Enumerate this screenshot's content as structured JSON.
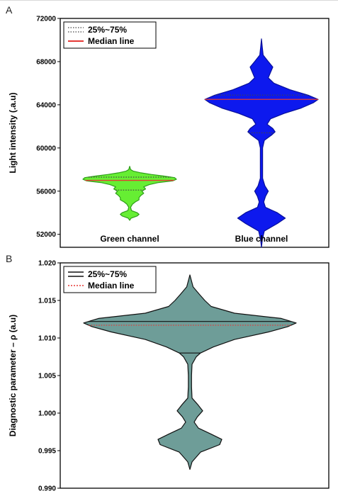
{
  "chart_data": [
    {
      "panel_label": "A",
      "type": "violin",
      "categories": [
        "Green channel",
        "Blue channel"
      ],
      "ylabel": "Light intensity (.a.u)",
      "ylim": [
        50800,
        72000
      ],
      "yticks": [
        52000,
        56000,
        60000,
        64000,
        68000,
        72000
      ],
      "grid": false,
      "legend_position": "top-left",
      "legend": [
        {
          "label": "25%~75%",
          "style": "dotted",
          "color": "#444444"
        },
        {
          "label": "Median line",
          "style": "solid",
          "color": "#e53935"
        }
      ],
      "series": [
        {
          "name": "Green channel",
          "fill": "#66ee33",
          "stroke": "#2f9e1a",
          "min": 53300,
          "max": 58300,
          "median": 57000,
          "q1": 56100,
          "q3": 57300,
          "profile": [
            [
              53300,
              0.0
            ],
            [
              53500,
              0.03
            ],
            [
              53700,
              0.16
            ],
            [
              53850,
              0.2
            ],
            [
              54000,
              0.16
            ],
            [
              54200,
              0.04
            ],
            [
              54500,
              0.02
            ],
            [
              54800,
              0.06
            ],
            [
              55000,
              0.12
            ],
            [
              55200,
              0.2
            ],
            [
              55400,
              0.2
            ],
            [
              55600,
              0.24
            ],
            [
              55800,
              0.3
            ],
            [
              56000,
              0.26
            ],
            [
              56200,
              0.34
            ],
            [
              56400,
              0.3
            ],
            [
              56600,
              0.42
            ],
            [
              56800,
              0.62
            ],
            [
              56950,
              0.92
            ],
            [
              57100,
              1.0
            ],
            [
              57250,
              0.96
            ],
            [
              57400,
              0.72
            ],
            [
              57550,
              0.46
            ],
            [
              57700,
              0.24
            ],
            [
              57850,
              0.08
            ],
            [
              58000,
              0.02
            ],
            [
              58300,
              0.0
            ]
          ]
        },
        {
          "name": "Blue channel",
          "fill": "#0d19ee",
          "stroke": "#08109a",
          "min": 50800,
          "max": 70100,
          "median": 64500,
          "q1": 61400,
          "q3": 64900,
          "profile": [
            [
              50800,
              0.0
            ],
            [
              51500,
              0.015
            ],
            [
              52300,
              0.05
            ],
            [
              53000,
              0.28
            ],
            [
              53500,
              0.42
            ],
            [
              54000,
              0.28
            ],
            [
              54500,
              0.07
            ],
            [
              55000,
              0.04
            ],
            [
              55500,
              0.07
            ],
            [
              56000,
              0.12
            ],
            [
              56500,
              0.06
            ],
            [
              57200,
              0.02
            ],
            [
              58500,
              0.02
            ],
            [
              60000,
              0.02
            ],
            [
              60700,
              0.05
            ],
            [
              61200,
              0.18
            ],
            [
              61500,
              0.24
            ],
            [
              61800,
              0.2
            ],
            [
              62200,
              0.1
            ],
            [
              62700,
              0.16
            ],
            [
              63200,
              0.4
            ],
            [
              63700,
              0.7
            ],
            [
              64200,
              0.92
            ],
            [
              64500,
              1.0
            ],
            [
              64900,
              0.82
            ],
            [
              65400,
              0.5
            ],
            [
              66000,
              0.22
            ],
            [
              66500,
              0.12
            ],
            [
              67000,
              0.16
            ],
            [
              67500,
              0.2
            ],
            [
              68000,
              0.12
            ],
            [
              68600,
              0.03
            ],
            [
              69300,
              0.015
            ],
            [
              70100,
              0.0
            ]
          ]
        }
      ]
    },
    {
      "panel_label": "B",
      "type": "violin",
      "categories": [],
      "ylabel": "Diagnostic parameter – ρ (a.u)",
      "ylim": [
        0.99,
        1.02
      ],
      "yticks": [
        0.99,
        0.995,
        1.0,
        1.005,
        1.01,
        1.015,
        1.02
      ],
      "ytick_decimals": 3,
      "grid": false,
      "legend_position": "top-left",
      "legend": [
        {
          "label": "25%~75%",
          "style": "solid",
          "color": "#111111"
        },
        {
          "label": "Median line",
          "style": "dotted",
          "color": "#e53935"
        }
      ],
      "series": [
        {
          "name": "",
          "fill": "#6e9d98",
          "stroke": "#111111",
          "min": 0.9925,
          "max": 1.0184,
          "median": 1.0117,
          "q1": 1.008,
          "q3": 1.0122,
          "profile": [
            [
              0.9925,
              0.0
            ],
            [
              0.9935,
              0.02
            ],
            [
              0.9948,
              0.1
            ],
            [
              0.9958,
              0.28
            ],
            [
              0.9965,
              0.3
            ],
            [
              0.9972,
              0.2
            ],
            [
              0.998,
              0.08
            ],
            [
              0.9988,
              0.04
            ],
            [
              0.9995,
              0.07
            ],
            [
              1.0003,
              0.12
            ],
            [
              1.0012,
              0.07
            ],
            [
              1.002,
              0.02
            ],
            [
              1.0035,
              0.015
            ],
            [
              1.005,
              0.015
            ],
            [
              1.0065,
              0.02
            ],
            [
              1.0075,
              0.06
            ],
            [
              1.008,
              0.1
            ],
            [
              1.0088,
              0.22
            ],
            [
              1.0098,
              0.42
            ],
            [
              1.0108,
              0.74
            ],
            [
              1.0115,
              0.92
            ],
            [
              1.012,
              1.0
            ],
            [
              1.0126,
              0.86
            ],
            [
              1.0133,
              0.42
            ],
            [
              1.0142,
              0.2
            ],
            [
              1.015,
              0.14
            ],
            [
              1.0158,
              0.09
            ],
            [
              1.0168,
              0.03
            ],
            [
              1.0184,
              0.0
            ]
          ]
        }
      ]
    }
  ]
}
